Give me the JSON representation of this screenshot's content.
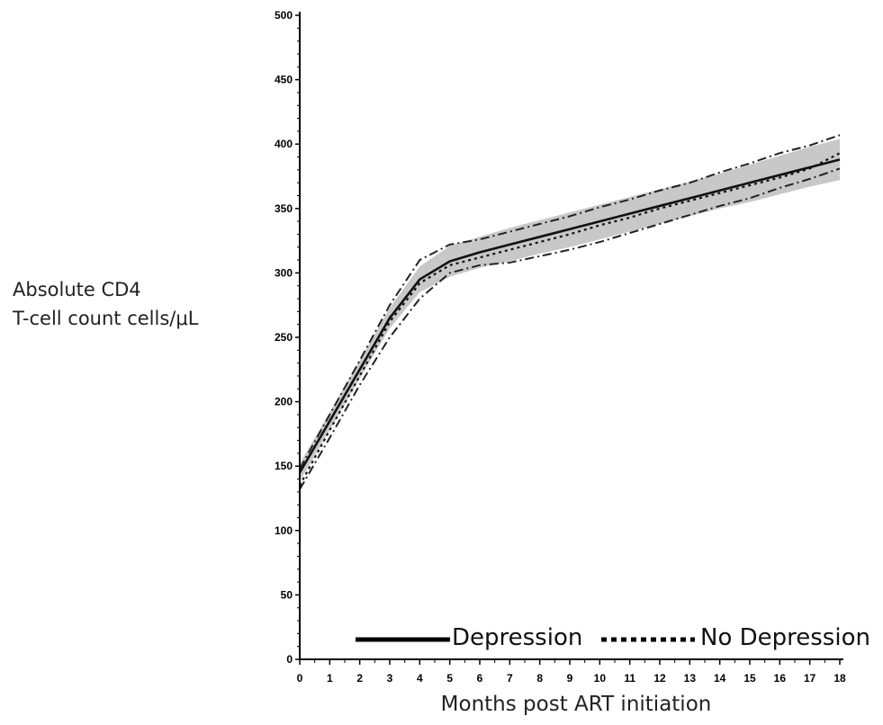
{
  "chart_data": {
    "type": "line",
    "title": "",
    "ylabel_lines": [
      "Absolute CD4",
      "T-cell count cells/μL"
    ],
    "xlabel": "Months post ART initiation",
    "xlim": [
      0,
      18
    ],
    "ylim": [
      0,
      500
    ],
    "x_ticks": [
      0,
      1,
      2,
      3,
      4,
      5,
      6,
      7,
      8,
      9,
      10,
      11,
      12,
      13,
      14,
      15,
      16,
      17,
      18
    ],
    "y_ticks": [
      0,
      50,
      100,
      150,
      200,
      250,
      300,
      350,
      400,
      450,
      500
    ],
    "legend_position": "bottom-right",
    "series": [
      {
        "name": "Depression",
        "style": "solid",
        "x": [
          0,
          1,
          2,
          3,
          4,
          5,
          6,
          7,
          8,
          9,
          10,
          11,
          12,
          13,
          14,
          15,
          16,
          17,
          18
        ],
        "y": [
          145,
          185,
          225,
          265,
          295,
          309,
          316,
          322,
          328,
          334,
          340,
          346,
          352,
          358,
          364,
          370,
          376,
          382,
          388
        ]
      },
      {
        "name": "No Depression",
        "style": "dotted",
        "x": [
          0,
          1,
          2,
          3,
          4,
          5,
          6,
          7,
          8,
          9,
          10,
          11,
          12,
          13,
          14,
          15,
          16,
          17,
          18
        ],
        "y": [
          135,
          178,
          220,
          262,
          292,
          306,
          312,
          318,
          324,
          330,
          337,
          343,
          350,
          356,
          362,
          368,
          374,
          381,
          393
        ]
      }
    ],
    "confidence_band": {
      "x": [
        0,
        1,
        2,
        3,
        4,
        5,
        6,
        7,
        8,
        9,
        10,
        11,
        12,
        13,
        14,
        15,
        16,
        17,
        18
      ],
      "lower": [
        138,
        178,
        218,
        257,
        285,
        297,
        304,
        309,
        315,
        320,
        326,
        332,
        338,
        344,
        350,
        355,
        361,
        367,
        372
      ],
      "upper": [
        152,
        192,
        232,
        273,
        305,
        321,
        328,
        335,
        341,
        347,
        353,
        359,
        365,
        371,
        377,
        384,
        391,
        398,
        404
      ]
    },
    "interval_lines": [
      {
        "style": "dashdot",
        "x": [
          0,
          1,
          2,
          3,
          4,
          5,
          6,
          7,
          8,
          9,
          10,
          11,
          12,
          13,
          14,
          15,
          16,
          17,
          18
        ],
        "y": [
          132,
          172,
          213,
          250,
          280,
          300,
          306,
          308,
          313,
          318,
          324,
          331,
          338,
          345,
          352,
          358,
          366,
          373,
          381
        ]
      },
      {
        "style": "dashdot",
        "x": [
          0,
          1,
          2,
          3,
          4,
          5,
          6,
          7,
          8,
          9,
          10,
          11,
          12,
          13,
          14,
          15,
          16,
          17,
          18
        ],
        "y": [
          148,
          190,
          232,
          275,
          310,
          322,
          326,
          332,
          338,
          344,
          351,
          357,
          364,
          370,
          378,
          385,
          393,
          399,
          407
        ]
      }
    ]
  }
}
